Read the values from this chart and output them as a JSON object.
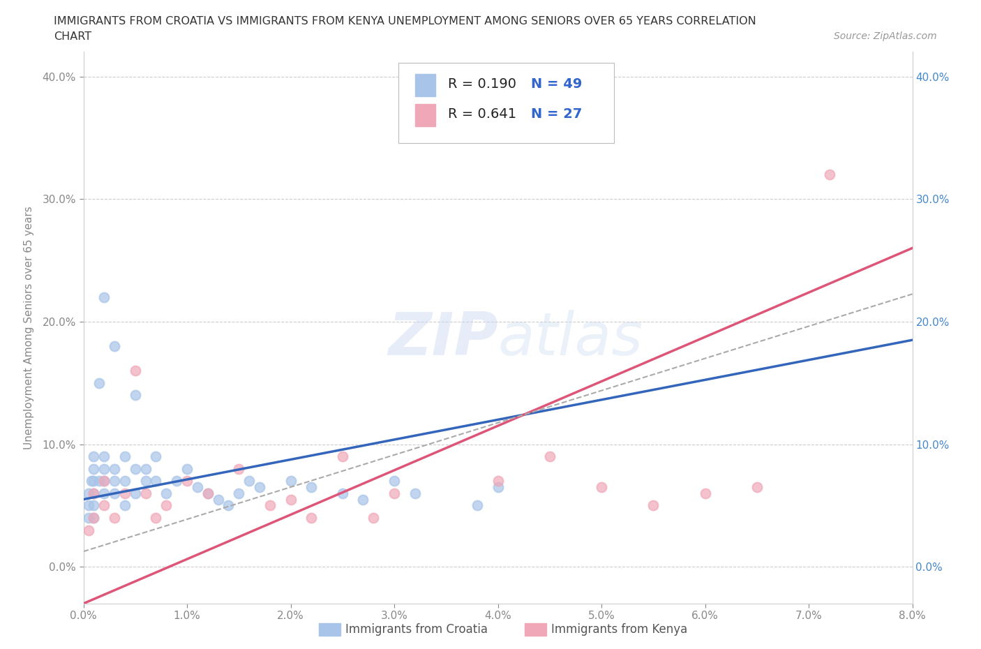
{
  "title_line1": "IMMIGRANTS FROM CROATIA VS IMMIGRANTS FROM KENYA UNEMPLOYMENT AMONG SENIORS OVER 65 YEARS CORRELATION",
  "title_line2": "CHART",
  "source": "Source: ZipAtlas.com",
  "ylabel": "Unemployment Among Seniors over 65 years",
  "xlim": [
    0.0,
    0.08
  ],
  "ylim": [
    -0.03,
    0.42
  ],
  "xticks": [
    0.0,
    0.01,
    0.02,
    0.03,
    0.04,
    0.05,
    0.06,
    0.07,
    0.08
  ],
  "xticklabels": [
    "0.0%",
    "1.0%",
    "2.0%",
    "3.0%",
    "4.0%",
    "5.0%",
    "6.0%",
    "7.0%",
    "8.0%"
  ],
  "yticks": [
    0.0,
    0.1,
    0.2,
    0.3,
    0.4
  ],
  "yticklabels": [
    "0.0%",
    "10.0%",
    "20.0%",
    "30.0%",
    "40.0%"
  ],
  "watermark": "ZIPatlas",
  "croatia_color": "#a8c4e8",
  "kenya_color": "#f0a8b8",
  "croatia_line_color": "#3366bb",
  "kenya_line_color": "#dd5577",
  "dash_line_color": "#aaaaaa",
  "R_croatia": 0.19,
  "N_croatia": 49,
  "R_kenya": 0.641,
  "N_kenya": 27,
  "background_color": "#ffffff",
  "grid_color": "#dddddd",
  "right_tick_color": "#4488cc",
  "title_color": "#333333",
  "axis_color": "#888888"
}
